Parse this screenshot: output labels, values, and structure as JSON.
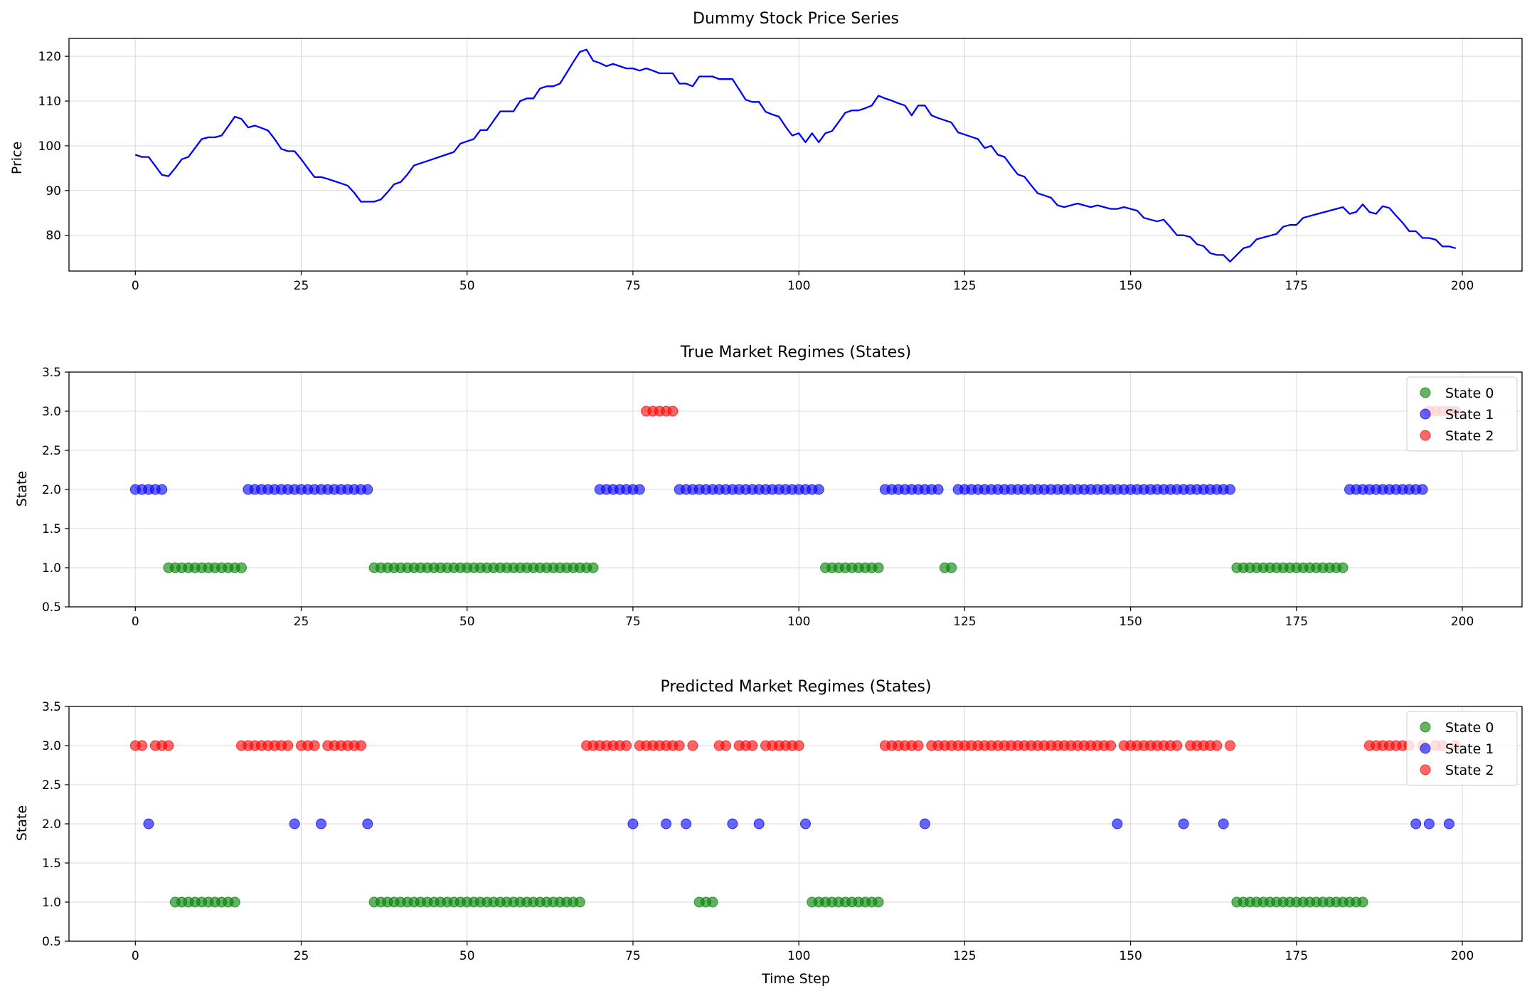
{
  "colors": {
    "price": "#0000ff",
    "state0": "#008000",
    "state1": "#0000ff",
    "state2": "#ff0000",
    "grid": "#d9d9d9"
  },
  "chart_data": [
    {
      "type": "line",
      "title": "Dummy Stock Price Series",
      "xlabel": "",
      "ylabel": "Price",
      "xlim": [
        -10,
        209
      ],
      "ylim": [
        72,
        124
      ],
      "xticks": [
        0,
        25,
        50,
        75,
        100,
        125,
        150,
        175,
        200
      ],
      "yticks": [
        80,
        90,
        100,
        110,
        120
      ],
      "grid": true,
      "series": [
        {
          "name": "",
          "x": [
            0,
            1,
            2,
            3,
            4,
            5,
            6,
            7,
            8,
            9,
            10,
            11,
            12,
            13,
            14,
            15,
            16,
            17,
            18,
            19,
            20,
            21,
            22,
            23,
            24,
            25,
            26,
            27,
            28,
            29,
            30,
            31,
            32,
            33,
            34,
            35,
            36,
            37,
            38,
            39,
            40,
            41,
            42,
            43,
            44,
            45,
            46,
            47,
            48,
            49,
            50,
            51,
            52,
            53,
            54,
            55,
            56,
            57,
            58,
            59,
            60,
            61,
            62,
            63,
            64,
            65,
            66,
            67,
            68,
            69,
            70,
            71,
            72,
            73,
            74,
            75,
            76,
            77,
            78,
            79,
            80,
            81,
            82,
            83,
            84,
            85,
            86,
            87,
            88,
            89,
            90,
            91,
            92,
            93,
            94,
            95,
            96,
            97,
            98,
            99,
            100,
            101,
            102,
            103,
            104,
            105,
            106,
            107,
            108,
            109,
            110,
            111,
            112,
            113,
            114,
            115,
            116,
            117,
            118,
            119,
            120,
            121,
            122,
            123,
            124,
            125,
            126,
            127,
            128,
            129,
            130,
            131,
            132,
            133,
            134,
            135,
            136,
            137,
            138,
            139,
            140,
            141,
            142,
            143,
            144,
            145,
            146,
            147,
            148,
            149,
            150,
            151,
            152,
            153,
            154,
            155,
            156,
            157,
            158,
            159,
            160,
            161,
            162,
            163,
            164,
            165,
            166,
            167,
            168,
            169,
            170,
            171,
            172,
            173,
            174,
            175,
            176,
            177,
            178,
            179,
            180,
            181,
            182,
            183,
            184,
            185,
            186,
            187,
            188,
            189,
            190,
            191,
            192,
            193,
            194,
            195,
            196,
            197,
            198,
            199
          ],
          "y": [
            98.0,
            97.5,
            97.5,
            95.5,
            93.5,
            93.2,
            95.0,
            97.0,
            97.5,
            99.5,
            101.5,
            101.9,
            101.9,
            102.3,
            104.4,
            106.5,
            106.0,
            104.1,
            104.5,
            104.0,
            103.4,
            101.5,
            99.3,
            98.8,
            98.8,
            97.0,
            95.0,
            93.0,
            93.0,
            92.6,
            92.1,
            91.6,
            91.1,
            89.5,
            87.5,
            87.5,
            87.5,
            88.0,
            89.6,
            91.4,
            91.9,
            93.6,
            95.6,
            96.1,
            96.6,
            97.1,
            97.6,
            98.1,
            98.6,
            100.5,
            101.0,
            101.5,
            103.5,
            103.5,
            105.6,
            107.7,
            107.7,
            107.7,
            110.0,
            110.6,
            110.6,
            112.8,
            113.3,
            113.3,
            113.9,
            116.3,
            118.7,
            121.0,
            121.5,
            119.0,
            118.5,
            117.8,
            118.3,
            117.8,
            117.3,
            117.3,
            116.8,
            117.3,
            116.8,
            116.2,
            116.2,
            116.2,
            113.9,
            113.9,
            113.3,
            115.5,
            115.5,
            115.5,
            114.9,
            114.9,
            114.9,
            112.6,
            110.3,
            109.8,
            109.8,
            107.6,
            107.0,
            106.5,
            104.3,
            102.3,
            102.8,
            100.8,
            102.8,
            100.8,
            102.8,
            103.3,
            105.3,
            107.4,
            107.9,
            107.9,
            108.4,
            109.0,
            111.2,
            110.6,
            110.1,
            109.5,
            109.0,
            106.8,
            109.0,
            109.0,
            106.8,
            106.2,
            105.7,
            105.2,
            103.0,
            102.5,
            102.0,
            101.5,
            99.5,
            100.0,
            98.0,
            97.5,
            95.5,
            93.6,
            93.1,
            91.2,
            89.4,
            88.9,
            88.4,
            86.7,
            86.3,
            86.7,
            87.1,
            86.7,
            86.3,
            86.7,
            86.3,
            85.9,
            85.9,
            86.3,
            85.9,
            85.5,
            83.9,
            83.5,
            83.1,
            83.5,
            81.8,
            80.0,
            80.0,
            79.6,
            78.0,
            77.6,
            76.0,
            75.6,
            75.6,
            74.1,
            75.6,
            77.1,
            77.5,
            79.1,
            79.5,
            79.9,
            80.3,
            81.9,
            82.3,
            82.3,
            83.9,
            84.3,
            84.7,
            85.1,
            85.5,
            85.9,
            86.3,
            84.8,
            85.2,
            86.9,
            85.2,
            84.8,
            86.5,
            86.1,
            84.4,
            82.8,
            80.9,
            80.9,
            79.4,
            79.4,
            79.0,
            77.5,
            77.5,
            77.1
          ]
        }
      ]
    },
    {
      "type": "scatter",
      "title": "True Market Regimes (States)",
      "xlabel": "",
      "ylabel": "State",
      "xlim": [
        -10,
        209
      ],
      "ylim": [
        0.5,
        3.5
      ],
      "xticks": [
        0,
        25,
        50,
        75,
        100,
        125,
        150,
        175,
        200
      ],
      "yticks": [
        "0.5",
        "1.0",
        "1.5",
        "2.0",
        "2.5",
        "3.0",
        "3.5"
      ],
      "grid": true,
      "legend": "top-right",
      "series": [
        {
          "name": "State 0",
          "y": 1,
          "segments": [
            [
              5,
              16
            ],
            [
              36,
              69
            ],
            [
              104,
              112
            ],
            [
              122,
              123
            ],
            [
              166,
              182
            ]
          ]
        },
        {
          "name": "State 1",
          "y": 2,
          "segments": [
            [
              0,
              4
            ],
            [
              17,
              35
            ],
            [
              70,
              76
            ],
            [
              82,
              103
            ],
            [
              113,
              121
            ],
            [
              124,
              165
            ],
            [
              183,
              194
            ]
          ]
        },
        {
          "name": "State 2",
          "y": 3,
          "segments": [
            [
              77,
              81
            ],
            [
              195,
              199
            ]
          ]
        }
      ]
    },
    {
      "type": "scatter",
      "title": "Predicted Market Regimes (States)",
      "xlabel": "Time Step",
      "ylabel": "State",
      "xlim": [
        -10,
        209
      ],
      "ylim": [
        0.5,
        3.5
      ],
      "xticks": [
        0,
        25,
        50,
        75,
        100,
        125,
        150,
        175,
        200
      ],
      "yticks": [
        "0.5",
        "1.0",
        "1.5",
        "2.0",
        "2.5",
        "3.0",
        "3.5"
      ],
      "grid": true,
      "legend": "top-right",
      "series": [
        {
          "name": "State 0",
          "y": 1,
          "segments": [
            [
              6,
              15
            ],
            [
              36,
              67
            ],
            [
              85,
              87
            ],
            [
              102,
              112
            ],
            [
              166,
              185
            ]
          ]
        },
        {
          "name": "State 1",
          "y": 2,
          "segments": [
            [
              2,
              2
            ],
            [
              24,
              24
            ],
            [
              28,
              28
            ],
            [
              35,
              35
            ],
            [
              75,
              75
            ],
            [
              80,
              80
            ],
            [
              83,
              83
            ],
            [
              90,
              90
            ],
            [
              94,
              94
            ],
            [
              101,
              101
            ],
            [
              119,
              119
            ],
            [
              148,
              148
            ],
            [
              158,
              158
            ],
            [
              164,
              164
            ],
            [
              193,
              193
            ],
            [
              195,
              195
            ],
            [
              198,
              198
            ]
          ]
        },
        {
          "name": "State 2",
          "y": 3,
          "segments": [
            [
              0,
              1
            ],
            [
              3,
              5
            ],
            [
              16,
              23
            ],
            [
              25,
              27
            ],
            [
              29,
              34
            ],
            [
              68,
              74
            ],
            [
              76,
              80
            ],
            [
              81,
              82
            ],
            [
              84,
              84
            ],
            [
              88,
              89
            ],
            [
              91,
              93
            ],
            [
              95,
              100
            ],
            [
              113,
              118
            ],
            [
              120,
              147
            ],
            [
              149,
              157
            ],
            [
              159,
              163
            ],
            [
              165,
              165
            ],
            [
              186,
              192
            ],
            [
              194,
              194
            ],
            [
              196,
              197
            ],
            [
              199,
              199
            ]
          ]
        }
      ]
    }
  ]
}
